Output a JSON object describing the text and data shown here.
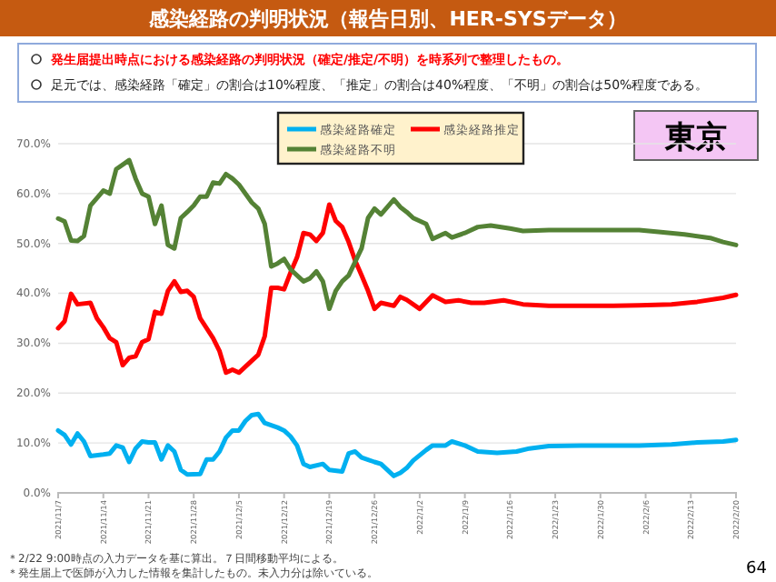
{
  "chart_data": {
    "type": "line",
    "title": "感染経路の判明状況（報告日別、HER-SYSデータ）",
    "subtitle": "発生届提出時点における感染経路の判明状況（確定/推定/不明）を時系列で整理したもの。",
    "annotations": [
      "足元では、感染経路「確定」の割合は10%程度、「推定」の割合は40%程度、「不明」の割合は50%程度である。",
      "東京",
      "＊2/22 9:00時点の入力データを基に算出。７日間移動平均による。",
      "＊発生届上で医師が入力した情報を集計したもの。未入力分は除いている。",
      "64"
    ],
    "xlim": [
      "2021-11-07",
      "2022-02-20"
    ],
    "xticks": [
      {
        "value": "2021-11-07",
        "label": "2021/11/7"
      },
      {
        "value": "2021-11-14",
        "label": "2021/11/14"
      },
      {
        "value": "2021-11-21",
        "label": "2021/11/21"
      },
      {
        "value": "2021-11-28",
        "label": "2021/11/28"
      },
      {
        "value": "2021-12-05",
        "label": "2021/12/5"
      },
      {
        "value": "2021-12-12",
        "label": "2021/12/12"
      },
      {
        "value": "2021-12-19",
        "label": "2021/12/19"
      },
      {
        "value": "2021-12-26",
        "label": "2021/12/26"
      },
      {
        "value": "2022-01-02",
        "label": "2022/1/2"
      },
      {
        "value": "2022-01-09",
        "label": "2022/1/9"
      },
      {
        "value": "2022-01-16",
        "label": "2022/1/16"
      },
      {
        "value": "2022-01-23",
        "label": "2022/1/23"
      },
      {
        "value": "2022-01-30",
        "label": "2022/1/30"
      },
      {
        "value": "2022-02-06",
        "label": "2022/2/6"
      },
      {
        "value": "2022-02-13",
        "label": "2022/2/13"
      },
      {
        "value": "2022-02-20",
        "label": "2022/2/20"
      }
    ],
    "ylim": [
      0,
      70
    ],
    "yticks": [
      {
        "value": 0,
        "label": "0.0%"
      },
      {
        "value": 10,
        "label": "10.0%"
      },
      {
        "value": 20,
        "label": "20.0%"
      },
      {
        "value": 30,
        "label": "30.0%"
      },
      {
        "value": 40,
        "label": "40.0%"
      },
      {
        "value": 50,
        "label": "50.0%"
      },
      {
        "value": 60,
        "label": "60.0%"
      },
      {
        "value": 70,
        "label": "70.0%"
      }
    ],
    "grid": "y",
    "legend": "top",
    "marker": "none",
    "line_style": "solid",
    "series": [
      {
        "name": "感染経路確定",
        "color": "#00b0f0",
        "x": [
          "2021-11-07",
          "2021-11-08",
          "2021-11-09",
          "2021-11-10",
          "2021-11-11",
          "2021-11-12",
          "2021-11-14",
          "2021-11-15",
          "2021-11-16",
          "2021-11-17",
          "2021-11-18",
          "2021-11-19",
          "2021-11-20",
          "2021-11-21",
          "2021-11-22",
          "2021-11-23",
          "2021-11-24",
          "2021-11-25",
          "2021-11-26",
          "2021-11-27",
          "2021-11-29",
          "2021-11-30",
          "2021-12-01",
          "2021-12-02",
          "2021-12-03",
          "2021-12-04",
          "2021-12-05",
          "2021-12-06",
          "2021-12-07",
          "2021-12-08",
          "2021-12-09",
          "2021-12-11",
          "2021-12-12",
          "2021-12-13",
          "2021-12-14",
          "2021-12-15",
          "2021-12-16",
          "2021-12-18",
          "2021-12-19",
          "2021-12-21",
          "2021-12-22",
          "2021-12-23",
          "2021-12-24",
          "2021-12-26",
          "2021-12-27",
          "2021-12-29",
          "2021-12-30",
          "2021-12-31",
          "2022-01-01",
          "2022-01-03",
          "2022-01-04",
          "2022-01-06",
          "2022-01-07",
          "2022-01-09",
          "2022-01-11",
          "2022-01-14",
          "2022-01-17",
          "2022-01-19",
          "2022-01-22",
          "2022-01-27",
          "2022-02-01",
          "2022-02-05",
          "2022-02-10",
          "2022-02-14",
          "2022-02-18",
          "2022-02-20"
        ],
        "values": [
          12.5,
          11.6,
          9.7,
          11.9,
          10.3,
          7.4,
          7.7,
          7.9,
          9.5,
          9.1,
          6.2,
          8.9,
          10.3,
          10.1,
          10.1,
          6.7,
          9.5,
          8.3,
          4.6,
          3.7,
          3.8,
          6.7,
          6.7,
          8.3,
          11.1,
          12.5,
          12.5,
          14.4,
          15.6,
          15.8,
          14.0,
          13.1,
          12.5,
          11.3,
          9.5,
          5.8,
          5.2,
          5.8,
          4.6,
          4.3,
          7.9,
          8.3,
          7.1,
          6.2,
          5.8,
          3.4,
          4.0,
          5.0,
          6.5,
          8.6,
          9.5,
          9.5,
          10.3,
          9.5,
          8.3,
          8.0,
          8.3,
          8.9,
          9.4,
          9.5,
          9.5,
          9.5,
          9.7,
          10.1,
          10.3,
          10.6
        ]
      },
      {
        "name": "感染経路推定",
        "color": "#ff0000",
        "x": [
          "2021-11-07",
          "2021-11-08",
          "2021-11-09",
          "2021-11-10",
          "2021-11-12",
          "2021-11-13",
          "2021-11-14",
          "2021-11-15",
          "2021-11-16",
          "2021-11-17",
          "2021-11-18",
          "2021-11-19",
          "2021-11-20",
          "2021-11-21",
          "2021-11-22",
          "2021-11-23",
          "2021-11-24",
          "2021-11-25",
          "2021-11-26",
          "2021-11-27",
          "2021-11-28",
          "2021-11-29",
          "2021-12-01",
          "2021-12-02",
          "2021-12-03",
          "2021-12-04",
          "2021-12-05",
          "2021-12-07",
          "2021-12-08",
          "2021-12-09",
          "2021-12-10",
          "2021-12-11",
          "2021-12-12",
          "2021-12-13",
          "2021-12-14",
          "2021-12-15",
          "2021-12-16",
          "2021-12-17",
          "2021-12-18",
          "2021-12-19",
          "2021-12-20",
          "2021-12-21",
          "2021-12-22",
          "2021-12-23",
          "2021-12-24",
          "2021-12-25",
          "2021-12-26",
          "2021-12-27",
          "2021-12-29",
          "2021-12-30",
          "2021-12-31",
          "2022-01-02",
          "2022-01-04",
          "2022-01-06",
          "2022-01-08",
          "2022-01-10",
          "2022-01-12",
          "2022-01-15",
          "2022-01-18",
          "2022-01-22",
          "2022-01-27",
          "2022-02-01",
          "2022-02-05",
          "2022-02-10",
          "2022-02-14",
          "2022-02-18",
          "2022-02-20"
        ],
        "values": [
          33.0,
          34.4,
          39.9,
          37.8,
          38.1,
          35.0,
          33.2,
          31.0,
          30.2,
          25.6,
          27.1,
          27.4,
          30.2,
          30.8,
          36.3,
          35.9,
          40.5,
          42.4,
          40.3,
          40.5,
          39.3,
          35.0,
          31.0,
          28.4,
          24.1,
          24.7,
          24.1,
          26.5,
          27.7,
          31.4,
          41.1,
          41.1,
          40.8,
          44.2,
          47.2,
          52.1,
          51.8,
          50.5,
          52.1,
          57.8,
          54.5,
          53.3,
          50.3,
          46.6,
          43.6,
          40.5,
          36.9,
          38.1,
          37.5,
          39.3,
          38.7,
          36.9,
          39.6,
          38.3,
          38.6,
          38.1,
          38.1,
          38.6,
          37.8,
          37.5,
          37.5,
          37.5,
          37.6,
          37.8,
          38.3,
          39.1,
          39.7
        ]
      },
      {
        "name": "感染経路不明",
        "color": "#548235",
        "x": [
          "2021-11-07",
          "2021-11-08",
          "2021-11-09",
          "2021-11-10",
          "2021-11-11",
          "2021-11-12",
          "2021-11-14",
          "2021-11-15",
          "2021-11-16",
          "2021-11-18",
          "2021-11-19",
          "2021-11-20",
          "2021-11-21",
          "2021-11-22",
          "2021-11-23",
          "2021-11-24",
          "2021-11-25",
          "2021-11-26",
          "2021-11-27",
          "2021-11-28",
          "2021-11-29",
          "2021-11-30",
          "2021-12-01",
          "2021-12-02",
          "2021-12-03",
          "2021-12-04",
          "2021-12-05",
          "2021-12-07",
          "2021-12-08",
          "2021-12-09",
          "2021-12-10",
          "2021-12-11",
          "2021-12-12",
          "2021-12-13",
          "2021-12-15",
          "2021-12-16",
          "2021-12-17",
          "2021-12-18",
          "2021-12-19",
          "2021-12-20",
          "2021-12-21",
          "2021-12-22",
          "2021-12-24",
          "2021-12-25",
          "2021-12-26",
          "2021-12-27",
          "2021-12-29",
          "2021-12-30",
          "2021-12-31",
          "2022-01-01",
          "2022-01-03",
          "2022-01-04",
          "2022-01-06",
          "2022-01-07",
          "2022-01-09",
          "2022-01-11",
          "2022-01-13",
          "2022-01-16",
          "2022-01-18",
          "2022-01-22",
          "2022-01-27",
          "2022-02-01",
          "2022-02-05",
          "2022-02-08",
          "2022-02-12",
          "2022-02-16",
          "2022-02-18",
          "2022-02-20"
        ],
        "values": [
          55.0,
          54.4,
          50.6,
          50.5,
          51.5,
          57.6,
          60.6,
          60.0,
          64.9,
          66.7,
          63.0,
          60.0,
          59.4,
          53.9,
          57.6,
          49.7,
          49.0,
          55.1,
          56.3,
          57.6,
          59.4,
          59.4,
          62.2,
          62.0,
          63.9,
          63.0,
          61.8,
          58.2,
          57.0,
          53.9,
          45.4,
          46.0,
          46.9,
          44.8,
          42.4,
          43.0,
          44.4,
          42.4,
          36.9,
          40.5,
          42.4,
          43.6,
          49.0,
          55.1,
          57.0,
          55.8,
          58.8,
          57.3,
          56.3,
          55.1,
          53.9,
          50.9,
          52.1,
          51.2,
          52.1,
          53.3,
          53.6,
          53.0,
          52.5,
          52.7,
          52.7,
          52.7,
          52.7,
          52.3,
          51.8,
          51.1,
          50.3,
          49.7
        ]
      }
    ]
  }
}
